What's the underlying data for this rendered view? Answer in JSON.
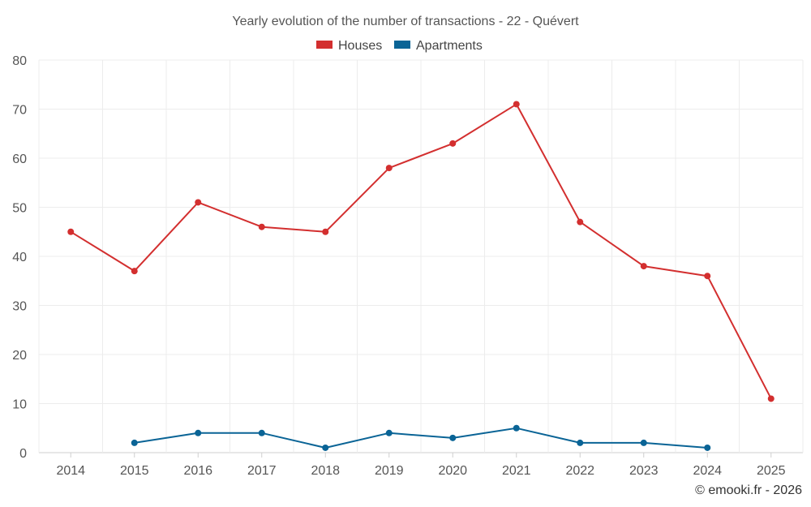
{
  "chart_data": {
    "type": "line",
    "title": "Yearly evolution of the number of transactions - 22 - Quévert",
    "categories": [
      "2014",
      "2015",
      "2016",
      "2017",
      "2018",
      "2019",
      "2020",
      "2021",
      "2022",
      "2023",
      "2024",
      "2025"
    ],
    "ylim": [
      0,
      80
    ],
    "yticks": [
      0,
      10,
      20,
      30,
      40,
      50,
      60,
      70,
      80
    ],
    "grid": true,
    "legend_position": "top-center",
    "series": [
      {
        "name": "Houses",
        "color": "#d32f2f",
        "values": [
          45,
          37,
          51,
          46,
          45,
          58,
          63,
          71,
          47,
          38,
          36,
          11
        ]
      },
      {
        "name": "Apartments",
        "color": "#0a6496",
        "values": [
          null,
          2,
          4,
          4,
          1,
          4,
          3,
          5,
          2,
          2,
          1,
          null
        ]
      }
    ]
  },
  "credit": "© emooki.fr - 2026"
}
